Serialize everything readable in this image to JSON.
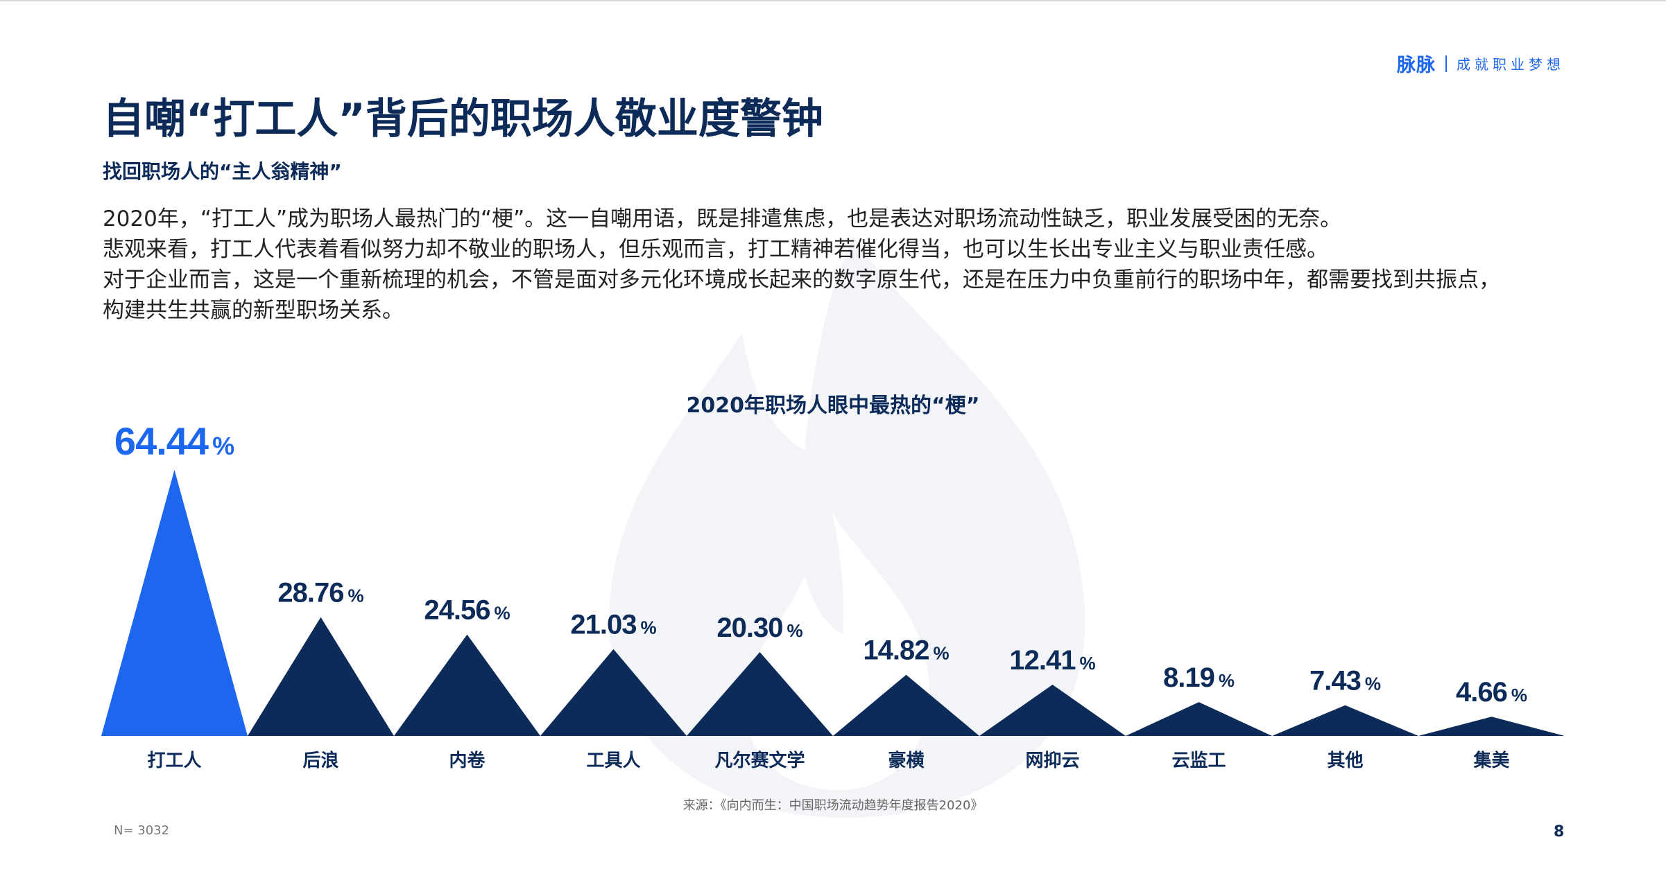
{
  "brand": {
    "name": "脉脉",
    "slogan": "成就职业梦想"
  },
  "page": {
    "title": "自嘲“打工人”背后的职场人敬业度警钟",
    "subtitle": "找回职场人的“主人翁精神”",
    "intro": [
      "2020年，“打工人”成为职场人最热门的“梗”。这一自嘲用语，既是排遣焦虑，也是表达对职场流动性缺乏，职业发展受困的无奈。",
      "悲观来看，打工人代表着看似努力却不敬业的职场人，但乐观而言，打工精神若催化得当，也可以生长出专业主义与职业责任感。",
      "对于企业而言，这是一个重新梳理的机会，不管是面对多元化环境成长起来的数字原生代，还是在压力中负重前行的职场中年，都需要找到共振点，",
      "构建共生共赢的新型职场关系。"
    ],
    "source": "来源：《向内而生：中国职场流动趋势年度报告2020》",
    "sample_size": "N= 3032",
    "page_number": "8"
  },
  "colors": {
    "highlight": "#1d67ef",
    "navy": "#0d2b59",
    "watermark": "#f2f4f7"
  },
  "chart_data": {
    "type": "bar",
    "mark_shape": "triangle",
    "title": "2020年职场人眼中最热的“梗”",
    "categories": [
      "打工人",
      "后浪",
      "内卷",
      "工具人",
      "凡尔赛文学",
      "豪横",
      "网抑云",
      "云监工",
      "其他",
      "集美"
    ],
    "values": [
      64.44,
      28.76,
      24.56,
      21.03,
      20.3,
      14.82,
      12.41,
      8.19,
      7.43,
      4.66
    ],
    "value_labels": [
      "64.44",
      "28.76",
      "24.56",
      "21.03",
      "20.30",
      "14.82",
      "12.41",
      "8.19",
      "7.43",
      "4.66"
    ],
    "unit": "%",
    "xlabel": "",
    "ylabel": "",
    "ylim": [
      0,
      64.44
    ],
    "highlight_index": 0,
    "grid": false,
    "legend": "none"
  }
}
